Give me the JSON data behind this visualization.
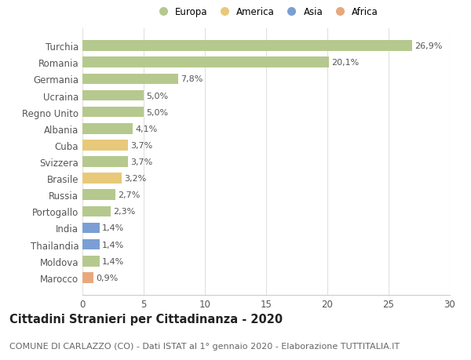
{
  "categories": [
    "Marocco",
    "Moldova",
    "Thailandia",
    "India",
    "Portogallo",
    "Russia",
    "Brasile",
    "Svizzera",
    "Cuba",
    "Albania",
    "Regno Unito",
    "Ucraina",
    "Germania",
    "Romania",
    "Turchia"
  ],
  "values": [
    0.9,
    1.4,
    1.4,
    1.4,
    2.3,
    2.7,
    3.2,
    3.7,
    3.7,
    4.1,
    5.0,
    5.0,
    7.8,
    20.1,
    26.9
  ],
  "labels": [
    "0,9%",
    "1,4%",
    "1,4%",
    "1,4%",
    "2,3%",
    "2,7%",
    "3,2%",
    "3,7%",
    "3,7%",
    "4,1%",
    "5,0%",
    "5,0%",
    "7,8%",
    "20,1%",
    "26,9%"
  ],
  "bar_colors": [
    "#e8a87c",
    "#b5c98e",
    "#7b9fd4",
    "#7b9fd4",
    "#b5c98e",
    "#b5c98e",
    "#e8c97a",
    "#b5c98e",
    "#e8c97a",
    "#b5c98e",
    "#b5c98e",
    "#b5c98e",
    "#b5c98e",
    "#b5c98e",
    "#b5c98e"
  ],
  "legend_labels": [
    "Europa",
    "America",
    "Asia",
    "Africa"
  ],
  "legend_colors": [
    "#b5c98e",
    "#e8c97a",
    "#7b9fd4",
    "#e8a87c"
  ],
  "title": "Cittadini Stranieri per Cittadinanza - 2020",
  "subtitle": "COMUNE DI CARLAZZO (CO) - Dati ISTAT al 1° gennaio 2020 - Elaborazione TUTTITALIA.IT",
  "xlim": [
    0,
    30
  ],
  "xticks": [
    0,
    5,
    10,
    15,
    20,
    25,
    30
  ],
  "background_color": "#ffffff",
  "grid_color": "#e0e0e0",
  "bar_height": 0.65,
  "title_fontsize": 10.5,
  "subtitle_fontsize": 8,
  "label_fontsize": 8,
  "tick_fontsize": 8.5
}
